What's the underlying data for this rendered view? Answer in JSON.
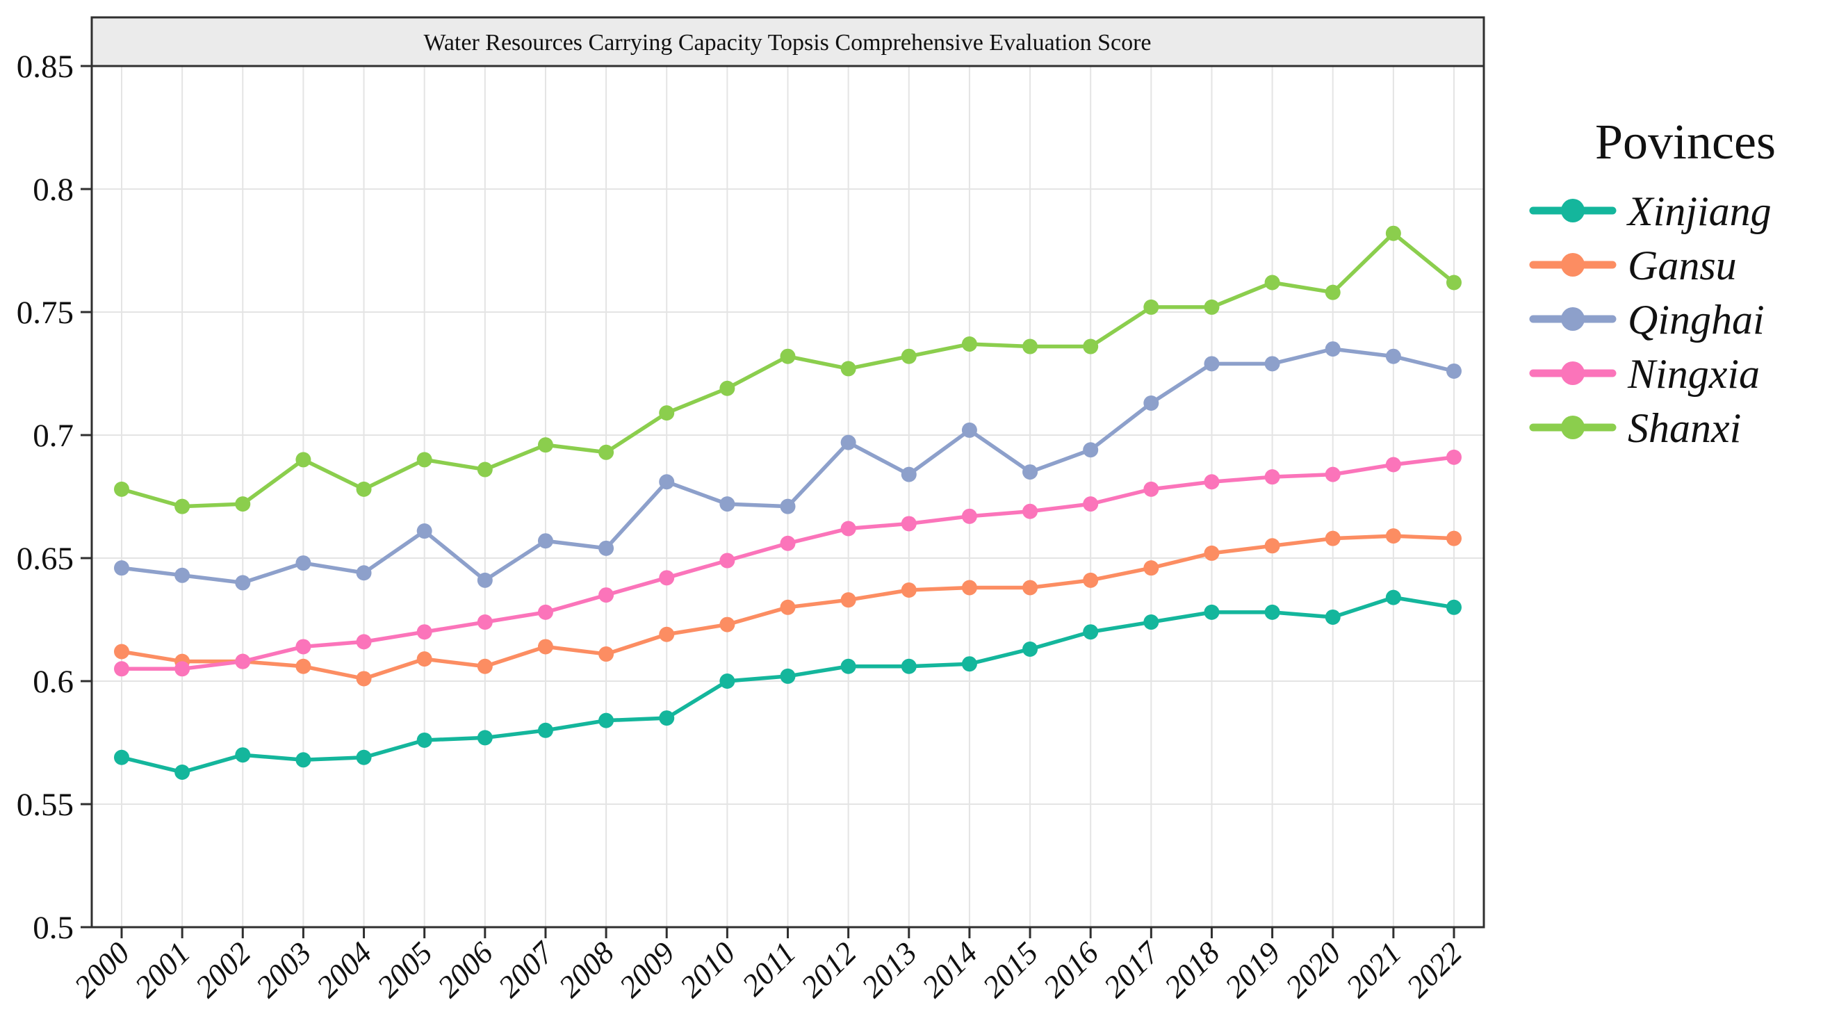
{
  "chart_data": {
    "type": "line",
    "title": "Water Resources Carrying Capacity Topsis Comprehensive Evaluation Score",
    "legend_title": "Povinces",
    "x": [
      "2000",
      "2001",
      "2002",
      "2003",
      "2004",
      "2005",
      "2006",
      "2007",
      "2008",
      "2009",
      "2010",
      "2011",
      "2012",
      "2013",
      "2014",
      "2015",
      "2016",
      "2017",
      "2018",
      "2019",
      "2020",
      "2021",
      "2022"
    ],
    "series": [
      {
        "name": "Xinjiang",
        "color": "#14B69C",
        "values": [
          0.569,
          0.563,
          0.57,
          0.568,
          0.569,
          0.576,
          0.577,
          0.58,
          0.584,
          0.585,
          0.6,
          0.602,
          0.606,
          0.606,
          0.607,
          0.613,
          0.62,
          0.624,
          0.628,
          0.628,
          0.626,
          0.634,
          0.63
        ]
      },
      {
        "name": "Gansu",
        "color": "#FC8D62",
        "values": [
          0.612,
          0.608,
          0.608,
          0.606,
          0.601,
          0.609,
          0.606,
          0.614,
          0.611,
          0.619,
          0.623,
          0.63,
          0.633,
          0.637,
          0.638,
          0.638,
          0.641,
          0.646,
          0.652,
          0.655,
          0.658,
          0.659,
          0.658
        ]
      },
      {
        "name": "Qinghai",
        "color": "#8DA0CB",
        "values": [
          0.646,
          0.643,
          0.64,
          0.648,
          0.644,
          0.661,
          0.641,
          0.657,
          0.654,
          0.681,
          0.672,
          0.671,
          0.697,
          0.684,
          0.702,
          0.685,
          0.694,
          0.713,
          0.729,
          0.729,
          0.735,
          0.732,
          0.726
        ]
      },
      {
        "name": "Ningxia",
        "color": "#FB74BA",
        "values": [
          0.605,
          0.605,
          0.608,
          0.614,
          0.616,
          0.62,
          0.624,
          0.628,
          0.635,
          0.642,
          0.649,
          0.656,
          0.662,
          0.664,
          0.667,
          0.669,
          0.672,
          0.678,
          0.681,
          0.683,
          0.684,
          0.688,
          0.691
        ]
      },
      {
        "name": "Shanxi",
        "color": "#8BCE4D",
        "values": [
          0.678,
          0.671,
          0.672,
          0.69,
          0.678,
          0.69,
          0.686,
          0.696,
          0.693,
          0.709,
          0.719,
          0.732,
          0.727,
          0.732,
          0.737,
          0.736,
          0.736,
          0.752,
          0.752,
          0.762,
          0.758,
          0.782,
          0.762
        ]
      }
    ],
    "ylim": [
      0.5,
      0.85
    ],
    "ytick_labels": [
      "0.5",
      "0.55",
      "0.6",
      "0.65",
      "0.7",
      "0.75",
      "0.8",
      "0.85"
    ],
    "yticks": [
      0.5,
      0.55,
      0.6,
      0.65,
      0.7,
      0.75,
      0.8,
      0.85
    ],
    "grid": true,
    "legend_position": "right"
  },
  "style": {
    "grid_color": "#E4E4E4",
    "panel_border_color": "#2F2F2F",
    "strip_fill": "#EBEBEB",
    "text_color": "#111111",
    "background": "#FFFFFF"
  }
}
